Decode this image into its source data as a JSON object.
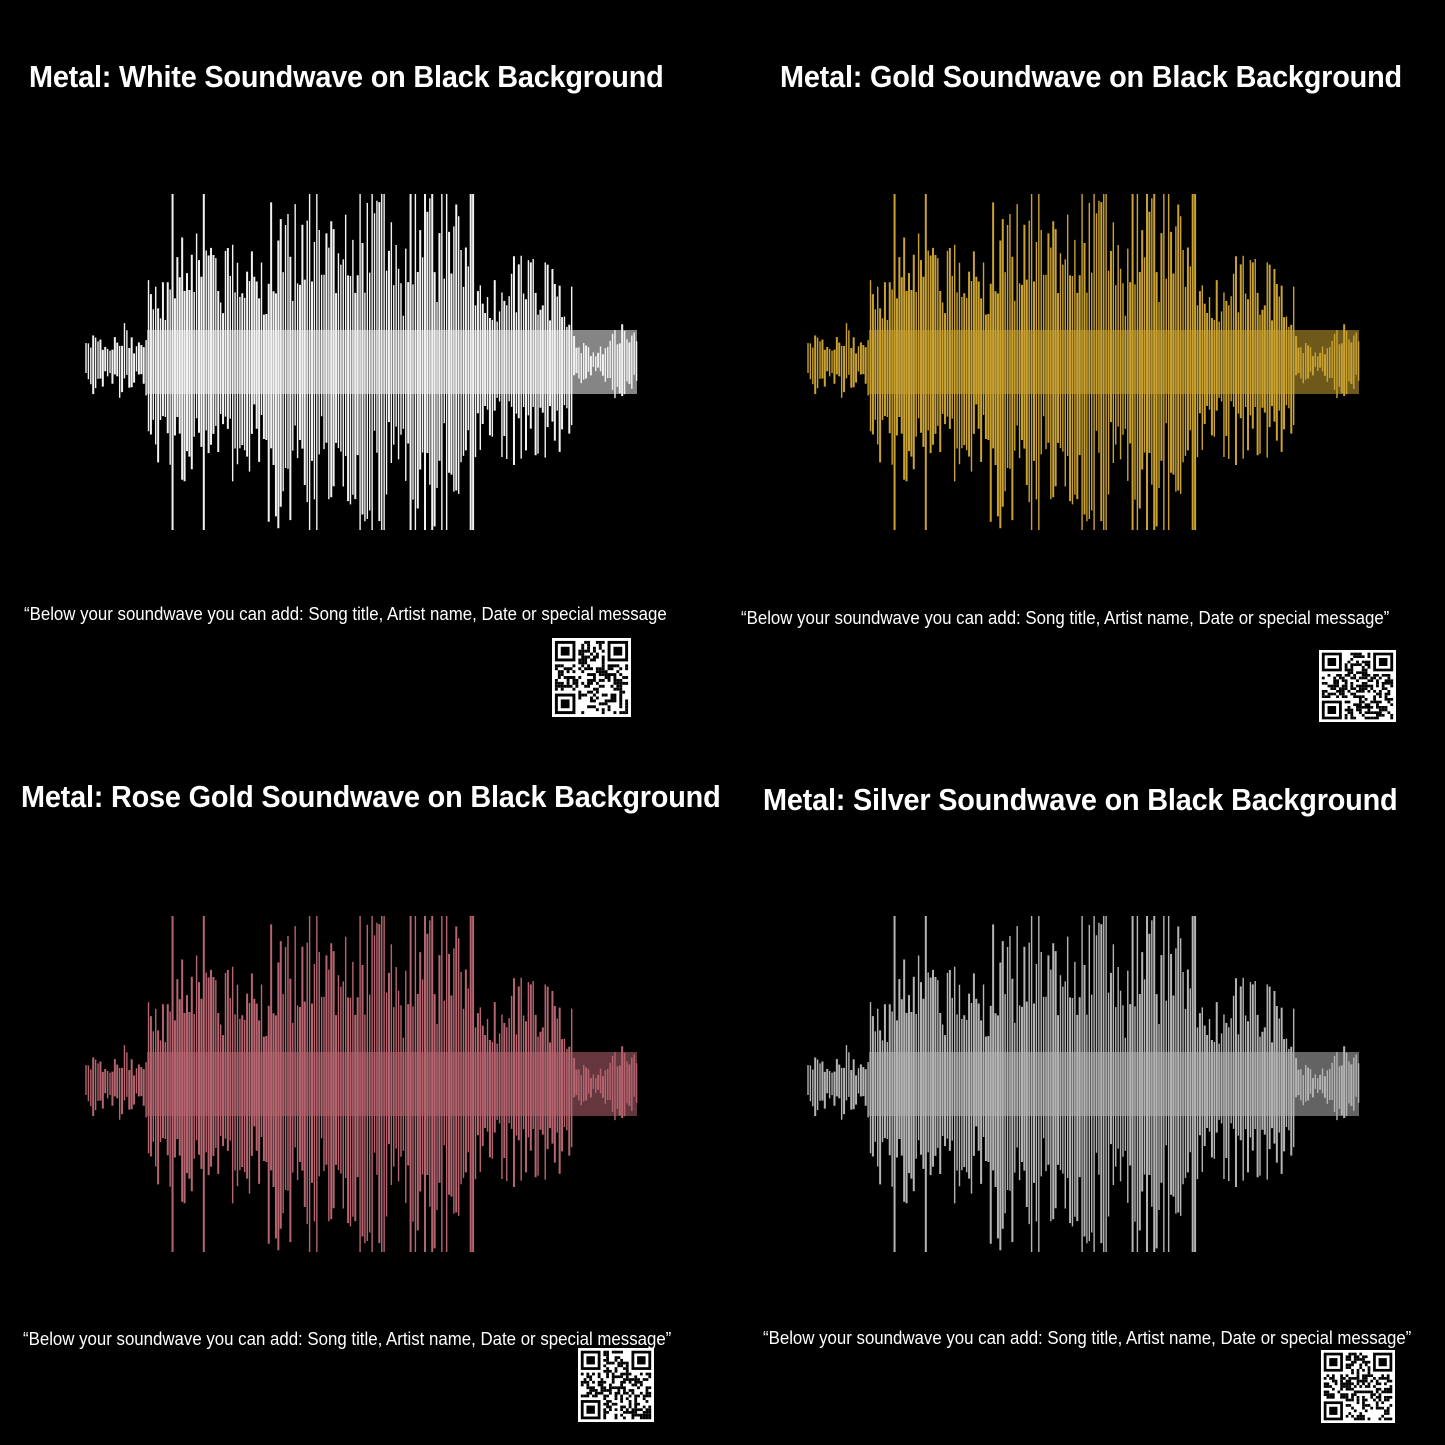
{
  "panels": [
    {
      "title": "Metal: White Soundwave on Black Background",
      "caption": "“Below your soundwave you can add: Song title, Artist name, Date or special message",
      "color": "#f2f2f2",
      "qr_icon": "qr-code-icon"
    },
    {
      "title": "Metal: Gold Soundwave on Black Background",
      "caption": "“Below your soundwave you can add: Song title, Artist name, Date or special message”",
      "color": "#c9a232",
      "qr_icon": "qr-code-icon"
    },
    {
      "title": "Metal: Rose Gold Soundwave on Black Background",
      "caption": "“Below your soundwave you can add: Song title, Artist name, Date or special message”",
      "color": "#b5656f",
      "qr_icon": "qr-code-icon"
    },
    {
      "title": "Metal: Silver Soundwave on Black Background",
      "caption": "“Below your soundwave you can add: Song title, Artist name, Date or special message”",
      "color": "#b4b4b4",
      "qr_icon": "qr-code-icon"
    }
  ]
}
